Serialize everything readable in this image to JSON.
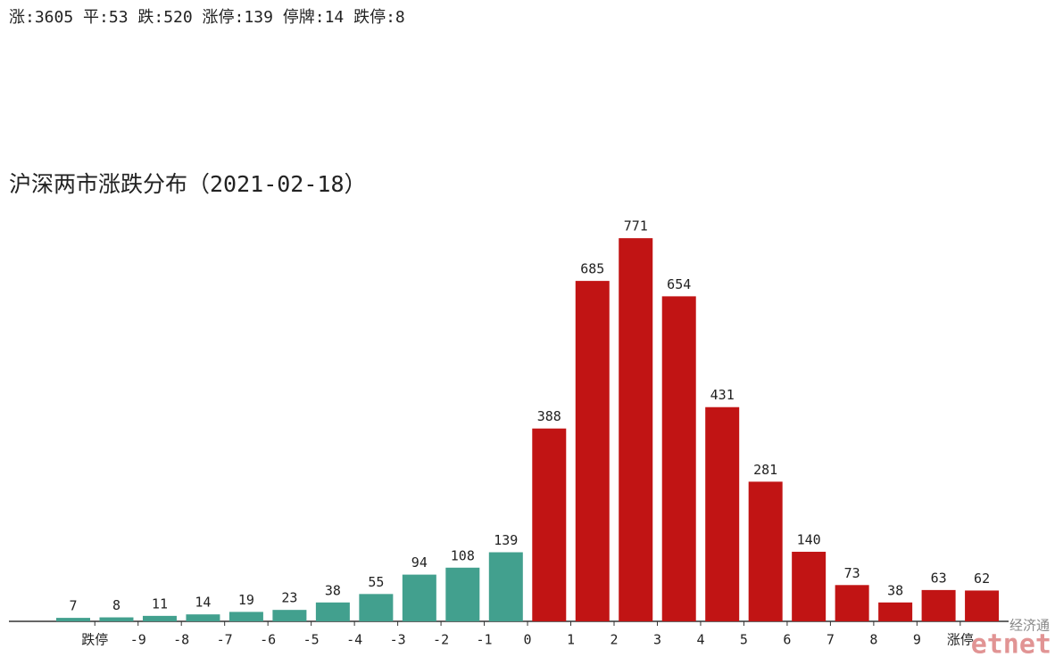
{
  "chart_data": {
    "type": "bar",
    "header": "涨:3605 平:53 跌:520 涨停:139 停牌:14 跌停:8",
    "title": "沪深两市涨跌分布（2021-02-18）",
    "values": [
      7,
      8,
      11,
      14,
      19,
      23,
      38,
      55,
      94,
      108,
      139,
      388,
      685,
      771,
      654,
      431,
      281,
      140,
      73,
      38,
      63,
      62
    ],
    "colors": [
      "#42a08e",
      "#42a08e",
      "#42a08e",
      "#42a08e",
      "#42a08e",
      "#42a08e",
      "#42a08e",
      "#42a08e",
      "#42a08e",
      "#42a08e",
      "#42a08e",
      "#c11414",
      "#c11414",
      "#c11414",
      "#c11414",
      "#c11414",
      "#c11414",
      "#c11414",
      "#c11414",
      "#c11414",
      "#c11414",
      "#c11414"
    ],
    "boundary_labels": [
      "跌停",
      "-9",
      "-8",
      "-7",
      "-6",
      "-5",
      "-4",
      "-3",
      "-2",
      "-1",
      "0",
      "1",
      "2",
      "3",
      "4",
      "5",
      "6",
      "7",
      "8",
      "9",
      "涨停"
    ],
    "ylim": [
      0,
      800
    ],
    "watermark": [
      "经济通",
      "etnet"
    ]
  }
}
